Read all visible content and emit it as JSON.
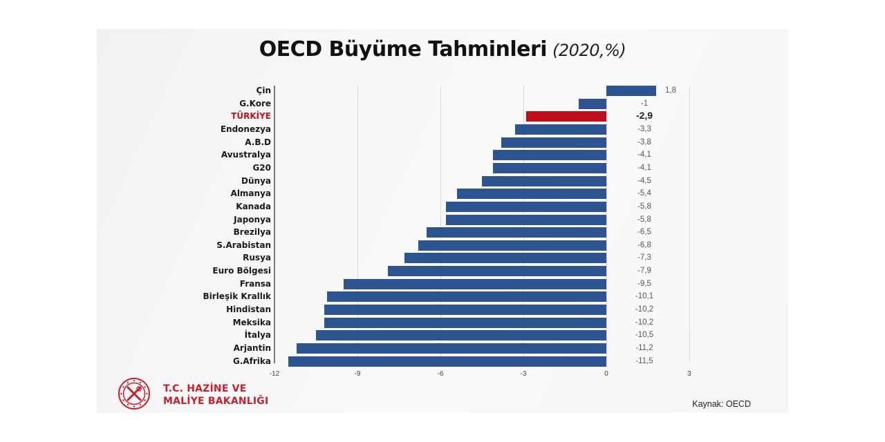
{
  "slide": {
    "title": "OECD Büyüme Tahminleri",
    "subtitle": "(2020,%)",
    "source": "Kaynak: OECD",
    "ministry_line1": "T.C. HAZİNE VE",
    "ministry_line2": "MALİYE BAKANLIĞI"
  },
  "colors": {
    "bar": "#2c5490",
    "highlight_bar": "#c00f1c",
    "highlight_label": "#c0121f",
    "ministry_red": "#c8202e"
  },
  "chart_data": {
    "type": "bar",
    "orientation": "horizontal",
    "title": "OECD Büyüme Tahminleri (2020,%)",
    "xlabel": "",
    "ylabel": "",
    "xlim": [
      -12,
      3
    ],
    "xticks": [
      "-12",
      "-9",
      "-6",
      "-3",
      "0",
      "3"
    ],
    "grid": true,
    "legend": null,
    "highlight": "TÜRKİYE",
    "categories": [
      "Çin",
      "G.Kore",
      "TÜRKİYE",
      "Endonezya",
      "A.B.D",
      "Avustralya",
      "G20",
      "Dünya",
      "Almanya",
      "Kanada",
      "Japonya",
      "Brezilya",
      "S.Arabistan",
      "Rusya",
      "Euro Bölgesi",
      "Fransa",
      "Birleşik Krallık",
      "Hindistan",
      "Meksika",
      "İtalya",
      "Arjantin",
      "G.Afrika"
    ],
    "values": [
      1.8,
      -1,
      -2.9,
      -3.3,
      -3.8,
      -4.1,
      -4.1,
      -4.5,
      -5.4,
      -5.8,
      -5.8,
      -6.5,
      -6.8,
      -7.3,
      -7.9,
      -9.5,
      -10.1,
      -10.2,
      -10.2,
      -10.5,
      -11.2,
      -11.5
    ],
    "value_labels": [
      "1,8",
      "-1",
      "-2,9",
      "-3,3",
      "-3,8",
      "-4,1",
      "-4,1",
      "-4,5",
      "-5,4",
      "-5,8",
      "-5,8",
      "-6,5",
      "-6,8",
      "-7,3",
      "-7,9",
      "-9,5",
      "-10,1",
      "-10,2",
      "-10,2",
      "-10,5",
      "-11,2",
      "-11,5"
    ],
    "source": "Kaynak: OECD"
  }
}
